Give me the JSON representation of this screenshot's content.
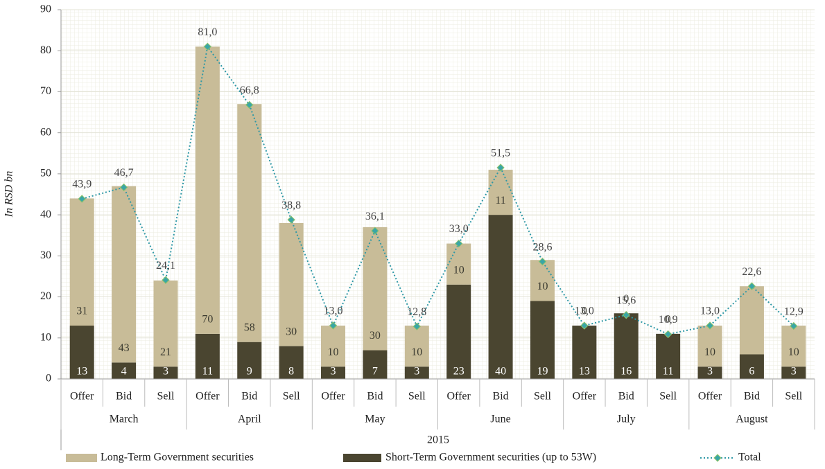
{
  "chart_data": {
    "type": "bar",
    "stacked": true,
    "y_label": "In RSD bn",
    "x_label": "2015",
    "categories": [
      "Offer",
      "Bid",
      "Sell",
      "Offer",
      "Bid",
      "Sell",
      "Offer",
      "Bid",
      "Sell",
      "Offer",
      "Bid",
      "Sell",
      "Offer",
      "Bid",
      "Sell",
      "Offer",
      "Bid",
      "Sell"
    ],
    "groups": [
      "March",
      "April",
      "May",
      "June",
      "July",
      "August"
    ],
    "ylim": [
      0,
      90
    ],
    "yticks": [
      0,
      10,
      20,
      30,
      40,
      50,
      60,
      70,
      80,
      90
    ],
    "grid": true,
    "legend": "bottom",
    "series": [
      {
        "name": "Long-Term Government securities",
        "color": "#c8bc98",
        "values": [
          31,
          43,
          21,
          70,
          58,
          30,
          10,
          30,
          10,
          10,
          11,
          10,
          0,
          0,
          0,
          10,
          16.6,
          10
        ],
        "value_labels": [
          31,
          43,
          21,
          70,
          58,
          30,
          10,
          30,
          10,
          10,
          11,
          10,
          0,
          0,
          0,
          10,
          null,
          10
        ]
      },
      {
        "name": "Short-Term Government securities (up to 53W)",
        "color": "#4a4530",
        "values": [
          13,
          4,
          3,
          11,
          9,
          8,
          3,
          7,
          3,
          23,
          40,
          19,
          13,
          16,
          11,
          3,
          6,
          3
        ]
      },
      {
        "name": "Total",
        "type": "line",
        "color": "#2e98a6",
        "values": [
          43.9,
          46.7,
          24.1,
          81.0,
          66.8,
          38.8,
          13.0,
          36.1,
          12.8,
          33.0,
          51.5,
          28.6,
          13.0,
          15.6,
          10.9,
          13.0,
          22.6,
          12.9
        ],
        "value_labels": [
          "43,9",
          "46,7",
          "24,1",
          "81,0",
          "66,8",
          "38,8",
          "13,0",
          "36,1",
          "12,8",
          "33,0",
          "51,5",
          "28,6",
          "13,0",
          "15,6",
          "10,9",
          "13,0",
          "22,6",
          "12,9"
        ]
      }
    ]
  }
}
